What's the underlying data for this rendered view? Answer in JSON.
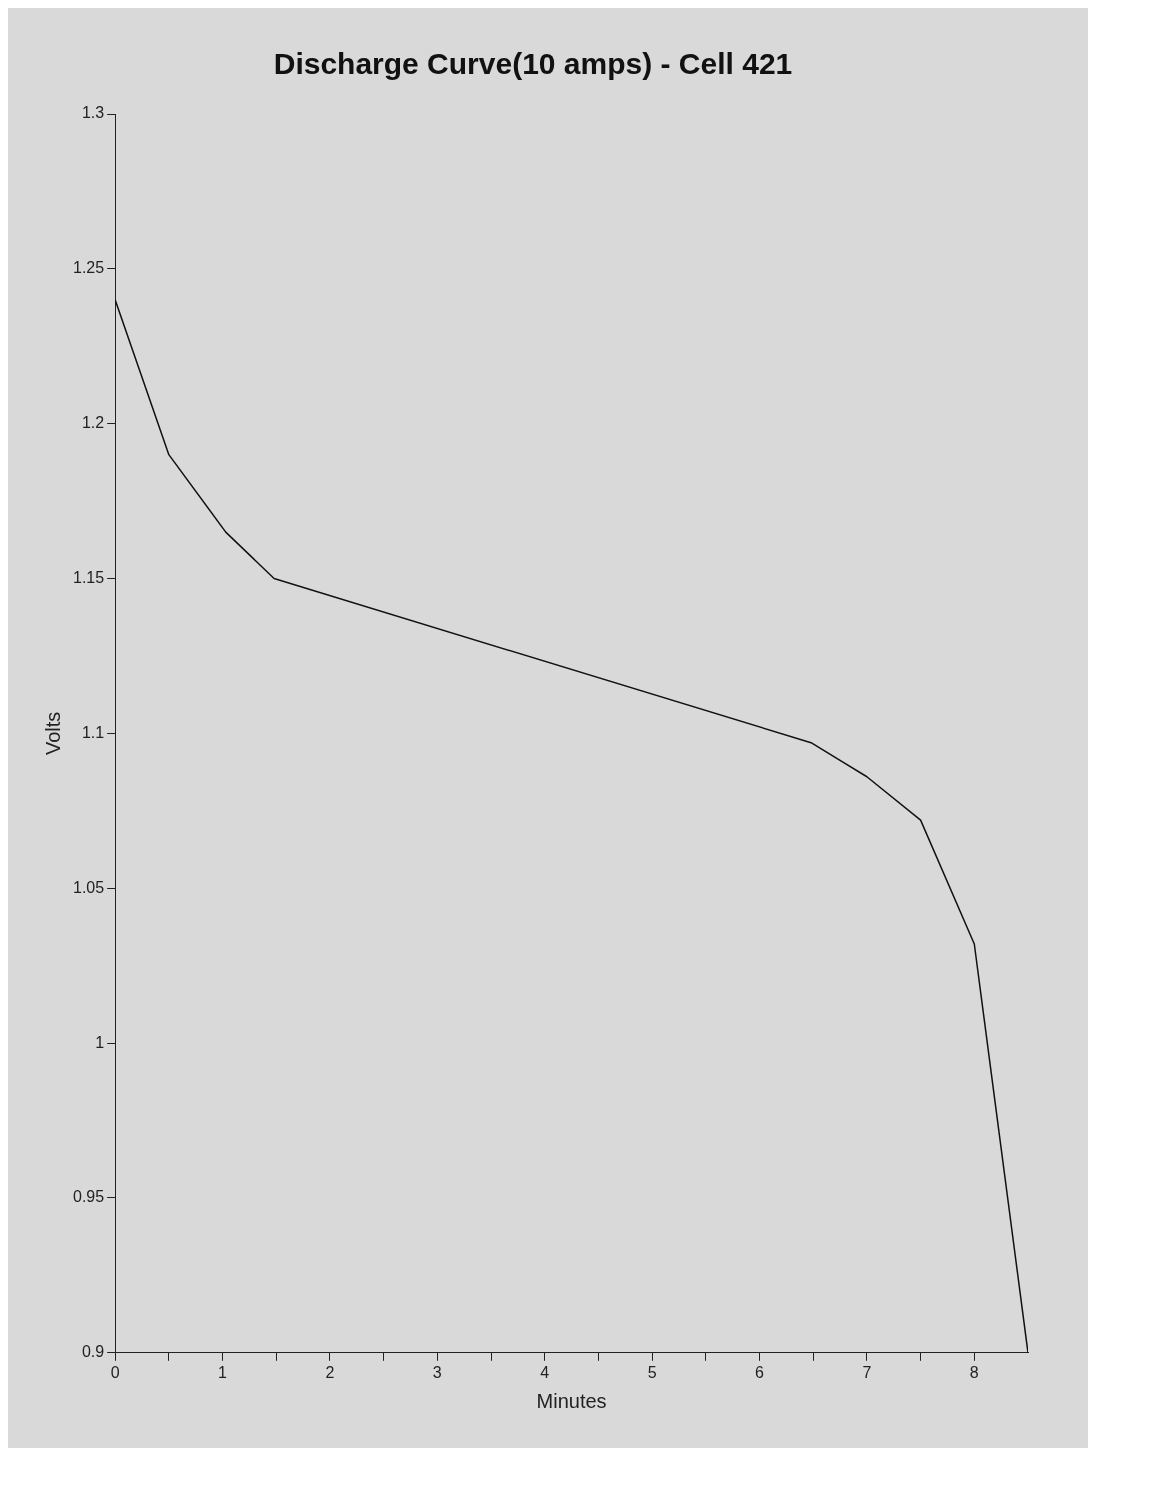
{
  "chart_data": {
    "type": "line",
    "title": "Discharge Curve(10 amps) - Cell 421",
    "xlabel": "Minutes",
    "ylabel": "Volts",
    "x": [
      0,
      0.5,
      1.03,
      1.48,
      6.48,
      7.0,
      7.5,
      8.0,
      8.5
    ],
    "series": [
      {
        "color": "#111111",
        "values": [
          1.24,
          1.19,
          1.165,
          1.15,
          1.097,
          1.086,
          1.072,
          1.032,
          0.9
        ]
      }
    ],
    "xlim": [
      0,
      8.5
    ],
    "xticks": [
      0,
      {
        "value": 0.5,
        "label": null
      },
      1,
      {
        "value": 1.5,
        "label": null
      },
      2,
      {
        "value": 2.5,
        "label": null
      },
      3,
      {
        "value": 3.5,
        "label": null
      },
      4,
      {
        "value": 4.5,
        "label": null
      },
      5,
      {
        "value": 5.5,
        "label": null
      },
      6,
      {
        "value": 6.5,
        "label": null
      },
      7,
      {
        "value": 7.5,
        "label": null
      },
      8
    ],
    "ylim": [
      0.9,
      1.3
    ],
    "yticks": [
      0.9,
      0.95,
      1,
      1.05,
      1.1,
      1.15,
      1.2,
      1.25,
      1.3
    ],
    "grid": false,
    "legend": false,
    "marker": "none",
    "line_style": "solid"
  }
}
